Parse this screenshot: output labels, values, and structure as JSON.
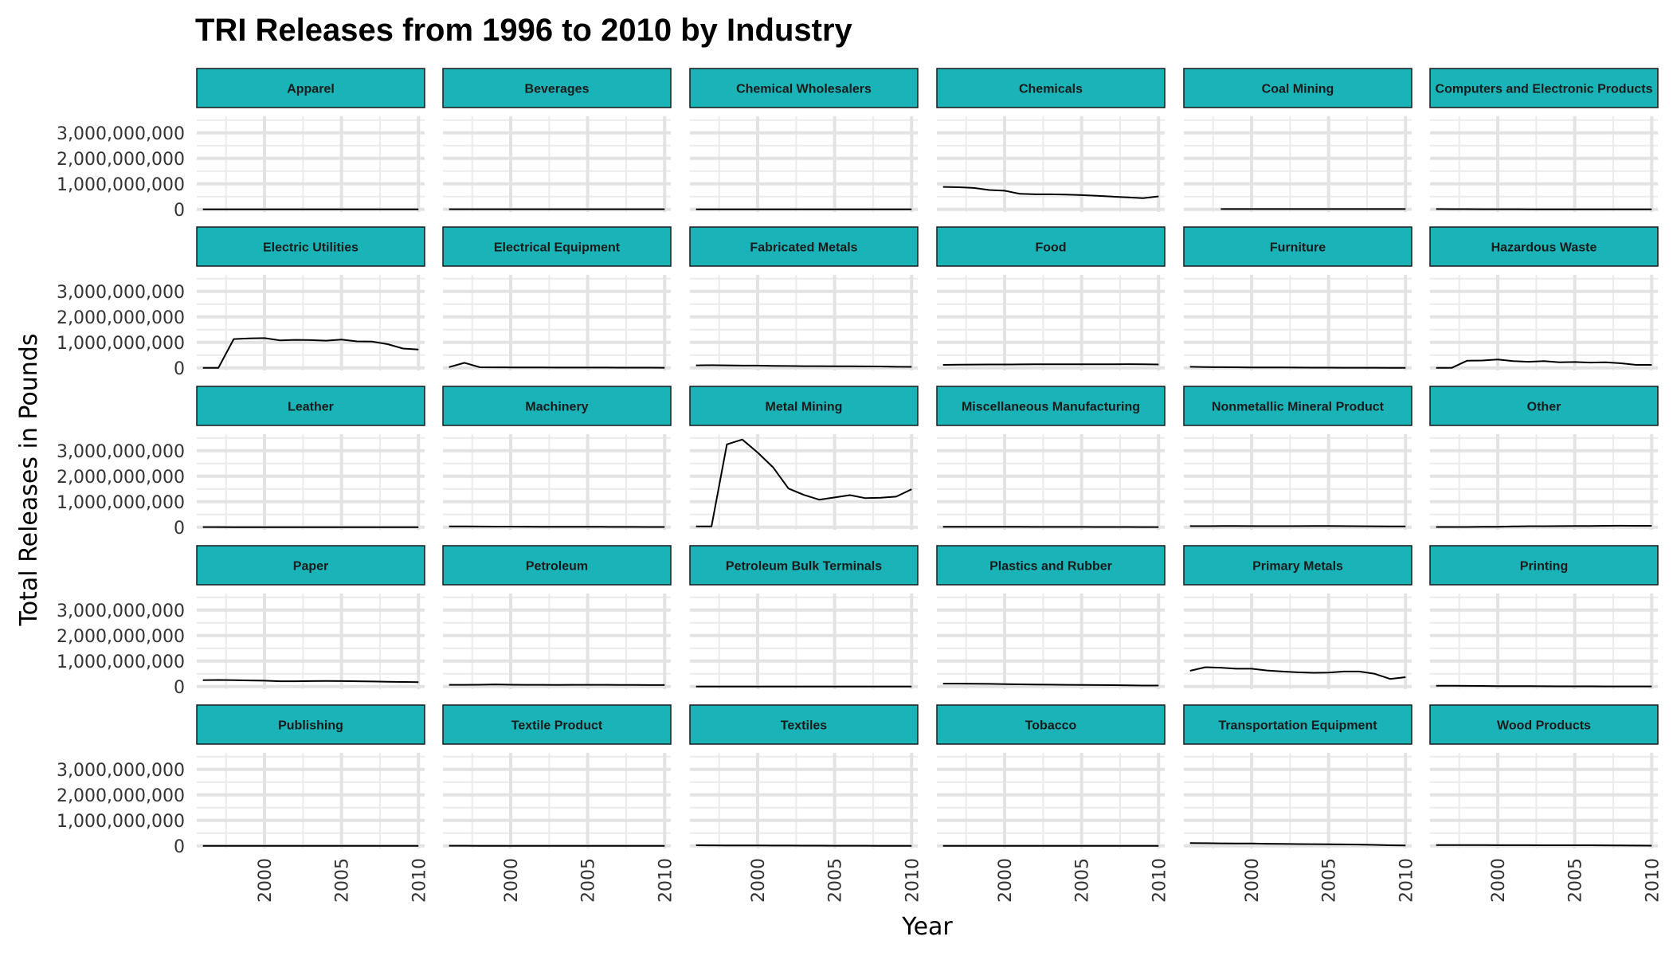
{
  "chart_data": {
    "type": "line",
    "title": "TRI Releases from 1996 to 2010 by Industry",
    "xlabel": "Year",
    "ylabel": "Total Releases in Pounds",
    "x": [
      1996,
      1997,
      1998,
      1999,
      2000,
      2001,
      2002,
      2003,
      2004,
      2005,
      2006,
      2007,
      2008,
      2009,
      2010
    ],
    "xlim": [
      1995.6,
      2010.4
    ],
    "ylim": [
      -100000000,
      3650000000
    ],
    "xticks": [
      2000,
      2005,
      2010
    ],
    "xtick_labels": [
      "2000",
      "2005",
      "2010"
    ],
    "yticks": [
      0,
      1000000000,
      2000000000,
      3000000000
    ],
    "ytick_labels": [
      "0",
      "1,000,000,000",
      "2,000,000,000",
      "3,000,000,000"
    ],
    "grid": true,
    "facet_layout": {
      "rows": 5,
      "cols": 6
    },
    "strip_color": "#1AB3B8",
    "line_color": "#000000",
    "panels": [
      {
        "name": "Apparel",
        "x_start": 1996,
        "values": [
          0,
          0,
          0,
          0,
          0,
          0,
          0,
          0,
          0,
          0,
          0,
          0,
          0,
          0,
          0
        ]
      },
      {
        "name": "Beverages",
        "x_start": 1996,
        "values": [
          5000000,
          5000000,
          5000000,
          5000000,
          5000000,
          5000000,
          5000000,
          5000000,
          5000000,
          5000000,
          5000000,
          5000000,
          5000000,
          5000000,
          5000000
        ]
      },
      {
        "name": "Chemical Wholesalers",
        "x_start": 1996,
        "values": [
          2000000,
          2000000,
          2000000,
          2000000,
          2000000,
          2000000,
          2000000,
          2000000,
          2000000,
          2000000,
          2000000,
          2000000,
          2000000,
          2000000,
          2000000
        ]
      },
      {
        "name": "Chemicals",
        "x_start": 1996,
        "values": [
          880000000,
          870000000,
          840000000,
          760000000,
          730000000,
          610000000,
          590000000,
          590000000,
          580000000,
          560000000,
          530000000,
          500000000,
          470000000,
          440000000,
          510000000
        ]
      },
      {
        "name": "Coal Mining",
        "x_start": 1998,
        "values": [
          13000000,
          14000000,
          14000000,
          14000000,
          14000000,
          14000000,
          14000000,
          14000000,
          14000000,
          13000000,
          13000000,
          12000000,
          11000000
        ]
      },
      {
        "name": "Computers and Electronic Products",
        "x_start": 1996,
        "values": [
          12000000,
          10000000,
          8000000,
          7000000,
          6000000,
          5000000,
          4000000,
          4000000,
          3000000,
          3000000,
          3000000,
          2000000,
          2000000,
          2000000,
          2000000
        ]
      },
      {
        "name": "Electric Utilities",
        "x_start": 1996,
        "values": [
          0,
          0,
          1130000000,
          1160000000,
          1170000000,
          1080000000,
          1100000000,
          1090000000,
          1070000000,
          1110000000,
          1040000000,
          1030000000,
          930000000,
          760000000,
          720000000
        ]
      },
      {
        "name": "Electrical Equipment",
        "x_start": 1996,
        "values": [
          30000000,
          200000000,
          25000000,
          22000000,
          20000000,
          18000000,
          16000000,
          14000000,
          13000000,
          12000000,
          11000000,
          10000000,
          9000000,
          8000000,
          7000000
        ]
      },
      {
        "name": "Fabricated Metals",
        "x_start": 1996,
        "values": [
          100000000,
          105000000,
          100000000,
          90000000,
          90000000,
          80000000,
          75000000,
          70000000,
          70000000,
          65000000,
          62000000,
          60000000,
          55000000,
          45000000,
          40000000
        ]
      },
      {
        "name": "Food",
        "x_start": 1996,
        "values": [
          120000000,
          125000000,
          130000000,
          135000000,
          135000000,
          138000000,
          140000000,
          140000000,
          145000000,
          145000000,
          145000000,
          145000000,
          148000000,
          140000000,
          135000000
        ]
      },
      {
        "name": "Furniture",
        "x_start": 1996,
        "values": [
          45000000,
          35000000,
          28000000,
          24000000,
          20000000,
          17000000,
          15000000,
          12000000,
          10000000,
          8000000,
          7000000,
          6000000,
          5000000,
          4000000,
          3000000
        ]
      },
      {
        "name": "Hazardous Waste",
        "x_start": 1996,
        "values": [
          0,
          0,
          280000000,
          290000000,
          330000000,
          270000000,
          240000000,
          270000000,
          220000000,
          230000000,
          210000000,
          220000000,
          180000000,
          120000000,
          120000000
        ]
      },
      {
        "name": "Leather",
        "x_start": 1996,
        "values": [
          5000000,
          5000000,
          4000000,
          4000000,
          3000000,
          3000000,
          3000000,
          2000000,
          2000000,
          2000000,
          2000000,
          1000000,
          1000000,
          1000000,
          1000000
        ]
      },
      {
        "name": "Machinery",
        "x_start": 1996,
        "values": [
          30000000,
          30000000,
          28000000,
          26000000,
          24000000,
          22000000,
          20000000,
          18000000,
          17000000,
          16000000,
          15000000,
          14000000,
          12000000,
          10000000,
          9000000
        ]
      },
      {
        "name": "Metal Mining",
        "x_start": 1996,
        "values": [
          30000000,
          30000000,
          3250000000,
          3440000000,
          2930000000,
          2350000000,
          1520000000,
          1270000000,
          1080000000,
          1170000000,
          1260000000,
          1140000000,
          1160000000,
          1200000000,
          1490000000
        ]
      },
      {
        "name": "Miscellaneous Manufacturing",
        "x_start": 1996,
        "values": [
          20000000,
          20000000,
          18000000,
          17000000,
          16000000,
          15000000,
          14000000,
          13000000,
          12000000,
          11000000,
          10000000,
          9000000,
          8000000,
          7000000,
          6000000
        ]
      },
      {
        "name": "Nonmetallic Mineral Product",
        "x_start": 1996,
        "values": [
          45000000,
          45000000,
          46000000,
          46000000,
          45000000,
          44000000,
          44000000,
          45000000,
          46000000,
          46000000,
          45000000,
          42000000,
          38000000,
          33000000,
          33000000
        ]
      },
      {
        "name": "Other",
        "x_start": 1996,
        "values": [
          10000000,
          10000000,
          10000000,
          15000000,
          20000000,
          30000000,
          40000000,
          40000000,
          45000000,
          50000000,
          50000000,
          55000000,
          60000000,
          55000000,
          55000000
        ]
      },
      {
        "name": "Paper",
        "x_start": 1996,
        "values": [
          250000000,
          260000000,
          250000000,
          240000000,
          230000000,
          210000000,
          210000000,
          215000000,
          220000000,
          215000000,
          210000000,
          200000000,
          190000000,
          180000000,
          175000000
        ]
      },
      {
        "name": "Petroleum",
        "x_start": 1996,
        "values": [
          70000000,
          70000000,
          72000000,
          85000000,
          72000000,
          70000000,
          68000000,
          67000000,
          70000000,
          70000000,
          68000000,
          66000000,
          64000000,
          60000000,
          58000000
        ]
      },
      {
        "name": "Petroleum Bulk Terminals",
        "x_start": 1996,
        "values": [
          3000000,
          3000000,
          3000000,
          3000000,
          3000000,
          3000000,
          3000000,
          3000000,
          3000000,
          3000000,
          3000000,
          3000000,
          3000000,
          3000000,
          3000000
        ]
      },
      {
        "name": "Plastics and Rubber",
        "x_start": 1996,
        "values": [
          115000000,
          115000000,
          110000000,
          105000000,
          98000000,
          86000000,
          80000000,
          74000000,
          70000000,
          66000000,
          60000000,
          55000000,
          48000000,
          42000000,
          40000000
        ]
      },
      {
        "name": "Primary Metals",
        "x_start": 1996,
        "values": [
          620000000,
          760000000,
          740000000,
          700000000,
          700000000,
          630000000,
          590000000,
          560000000,
          540000000,
          550000000,
          590000000,
          590000000,
          500000000,
          300000000,
          370000000
        ]
      },
      {
        "name": "Printing",
        "x_start": 1996,
        "values": [
          35000000,
          30000000,
          27000000,
          24000000,
          20000000,
          17000000,
          15000000,
          12000000,
          10000000,
          9000000,
          8000000,
          7000000,
          6000000,
          5000000,
          5000000
        ]
      },
      {
        "name": "Publishing",
        "x_start": 1996,
        "values": [
          0,
          0,
          0,
          0,
          0,
          0,
          0,
          0,
          0,
          0,
          0,
          0,
          0,
          0,
          0
        ]
      },
      {
        "name": "Textile Product",
        "x_start": 1996,
        "values": [
          5000000,
          5000000,
          4000000,
          4000000,
          3000000,
          3000000,
          3000000,
          2000000,
          2000000,
          2000000,
          2000000,
          1000000,
          1000000,
          1000000,
          1000000
        ]
      },
      {
        "name": "Textiles",
        "x_start": 1996,
        "values": [
          25000000,
          23000000,
          20000000,
          18000000,
          15000000,
          13000000,
          11000000,
          9000000,
          8000000,
          7000000,
          6000000,
          5000000,
          4000000,
          3000000,
          3000000
        ]
      },
      {
        "name": "Tobacco",
        "x_start": 1996,
        "values": [
          3000000,
          3000000,
          3000000,
          3000000,
          3000000,
          3000000,
          3000000,
          3000000,
          3000000,
          3000000,
          3000000,
          3000000,
          3000000,
          3000000,
          3000000
        ]
      },
      {
        "name": "Transportation Equipment",
        "x_start": 1996,
        "values": [
          110000000,
          105000000,
          100000000,
          98000000,
          95000000,
          85000000,
          78000000,
          72000000,
          68000000,
          65000000,
          58000000,
          52000000,
          40000000,
          25000000,
          20000000
        ]
      },
      {
        "name": "Wood Products",
        "x_start": 1996,
        "values": [
          30000000,
          30000000,
          30000000,
          30000000,
          28000000,
          28000000,
          27000000,
          26000000,
          26000000,
          25000000,
          24000000,
          22000000,
          20000000,
          12000000,
          10000000
        ]
      }
    ]
  }
}
